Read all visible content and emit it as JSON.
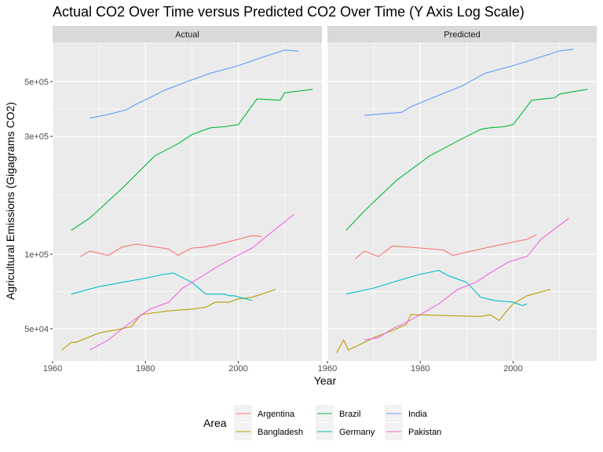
{
  "chart_data": {
    "type": "line",
    "title": "Actual CO2 Over Time versus Predicted CO2 Over Time (Y Axis Log Scale)",
    "xlabel": "Year",
    "ylabel": "Agricultural Emissions (Gigagrams CO2)",
    "y_scale": "log",
    "xlim": [
      1960,
      2018
    ],
    "ylim": [
      37000,
      720000
    ],
    "x_ticks": [
      1960,
      1980,
      2000
    ],
    "x_tick_labels": [
      "1960",
      "1980",
      "2000"
    ],
    "y_ticks": [
      50000,
      100000,
      300000,
      500000
    ],
    "y_tick_labels": [
      "5e+04",
      "1e+05",
      "3e+05",
      "5e+05"
    ],
    "grid": true,
    "legend": {
      "title": "Area",
      "position": "bottom"
    },
    "panels": [
      {
        "label": "Actual",
        "series": [
          {
            "name": "Argentina",
            "color": "#F8766D",
            "x": [
              1966,
              1968,
              1972,
              1975,
              1978,
              1985,
              1987,
              1990,
              1992,
              1995,
              2000,
              2003,
              2005
            ],
            "y": [
              98000,
              103000,
              99000,
              107000,
              110000,
              105000,
              99000,
              106000,
              106500,
              109000,
              115000,
              119000,
              118000
            ]
          },
          {
            "name": "Bangladesh",
            "color": "#B79F00",
            "x": [
              1962,
              1964,
              1965,
              1970,
              1975,
              1977,
              1979,
              1982,
              1985,
              1990,
              1993,
              1995,
              1998,
              2000,
              2003,
              2008
            ],
            "y": [
              41000,
              44000,
              44000,
              48000,
              50000,
              51000,
              57000,
              58000,
              59000,
              60000,
              61000,
              64000,
              64000,
              66000,
              67000,
              72000
            ]
          },
          {
            "name": "Brazil",
            "color": "#00BA38",
            "x": [
              1964,
              1968,
              1975,
              1982,
              1987,
              1990,
              1994,
              1997,
              2000,
              2004,
              2009,
              2010,
              2016
            ],
            "y": [
              125000,
              140000,
              185000,
              250000,
              280000,
              305000,
              325000,
              328000,
              335000,
              425000,
              420000,
              450000,
              465000
            ]
          },
          {
            "name": "Germany",
            "color": "#00BFC4",
            "x": [
              1964,
              1970,
              1975,
              1980,
              1984,
              1986,
              1990,
              1993,
              1997,
              1998,
              1999,
              2003
            ],
            "y": [
              69000,
              74000,
              77000,
              80000,
              83000,
              84000,
              77000,
              69000,
              69000,
              68000,
              68000,
              65000
            ]
          },
          {
            "name": "India",
            "color": "#619CFF",
            "x": [
              1968,
              1972,
              1976,
              1978,
              1982,
              1984,
              1989,
              1994,
              2000,
              2005,
              2010,
              2013
            ],
            "y": [
              355000,
              368000,
              385000,
              405000,
              440000,
              460000,
              500000,
              540000,
              580000,
              625000,
              670000,
              665000
            ]
          },
          {
            "name": "Pakistan",
            "color": "#F564E3",
            "x": [
              1968,
              1972,
              1975,
              1978,
              1981,
              1985,
              1988,
              1992,
              1995,
              1999,
              2003,
              2006,
              2012
            ],
            "y": [
              41000,
              45000,
              50000,
              55000,
              60000,
              64000,
              73000,
              81000,
              88000,
              97000,
              106000,
              118000,
              145000
            ]
          }
        ]
      },
      {
        "label": "Predicted",
        "series": [
          {
            "name": "Argentina",
            "color": "#F8766D",
            "x": [
              1966,
              1968,
              1971,
              1974,
              1980,
              1985,
              1987,
              1990,
              1994,
              2000,
              2003,
              2005
            ],
            "y": [
              96000,
              103000,
              98000,
              108000,
              106000,
              104000,
              99000,
              102000,
              106000,
              112000,
              115000,
              120000
            ]
          },
          {
            "name": "Bangladesh",
            "color": "#B79F00",
            "x": [
              1962,
              1963.5,
              1964.5,
              1968,
              1970,
              1975,
              1977,
              1978,
              1993,
              1995,
              1997,
              1998,
              2000,
              2003,
              2008
            ],
            "y": [
              40000,
              45000,
              41000,
              44000,
              46000,
              50000,
              52000,
              57000,
              56000,
              57000,
              54000,
              57000,
              63000,
              68000,
              72000
            ]
          },
          {
            "name": "Brazil",
            "color": "#00BA38",
            "x": [
              1964,
              1968,
              1975,
              1982,
              1990,
              1993,
              1995,
              1998,
              2000,
              2004,
              2009,
              2010,
              2016
            ],
            "y": [
              125000,
              150000,
              200000,
              250000,
              300000,
              320000,
              325000,
              328000,
              335000,
              420000,
              430000,
              445000,
              465000
            ]
          },
          {
            "name": "Germany",
            "color": "#00BFC4",
            "x": [
              1964,
              1970,
              1975,
              1980,
              1984,
              1986,
              1990,
              1993,
              1996,
              2000,
              2002,
              2003
            ],
            "y": [
              69000,
              73000,
              78000,
              83000,
              86000,
              82000,
              77000,
              67000,
              65000,
              64000,
              62000,
              63000
            ]
          },
          {
            "name": "India",
            "color": "#619CFF",
            "x": [
              1968,
              1972,
              1976,
              1978,
              1982,
              1984,
              1989,
              1994,
              2000,
              2005,
              2010,
              2013
            ],
            "y": [
              365000,
              370000,
              375000,
              395000,
              425000,
              440000,
              480000,
              540000,
              580000,
              620000,
              665000,
              675000
            ]
          },
          {
            "name": "Pakistan",
            "color": "#F564E3",
            "x": [
              1968,
              1971,
              1974,
              1977,
              1980,
              1984,
              1988,
              1992,
              1995,
              1999,
              2003,
              2006,
              2012
            ],
            "y": [
              45000,
              46000,
              50000,
              53000,
              57000,
              63000,
              72000,
              77000,
              84000,
              93000,
              98000,
              115000,
              140000
            ]
          }
        ]
      }
    ]
  }
}
